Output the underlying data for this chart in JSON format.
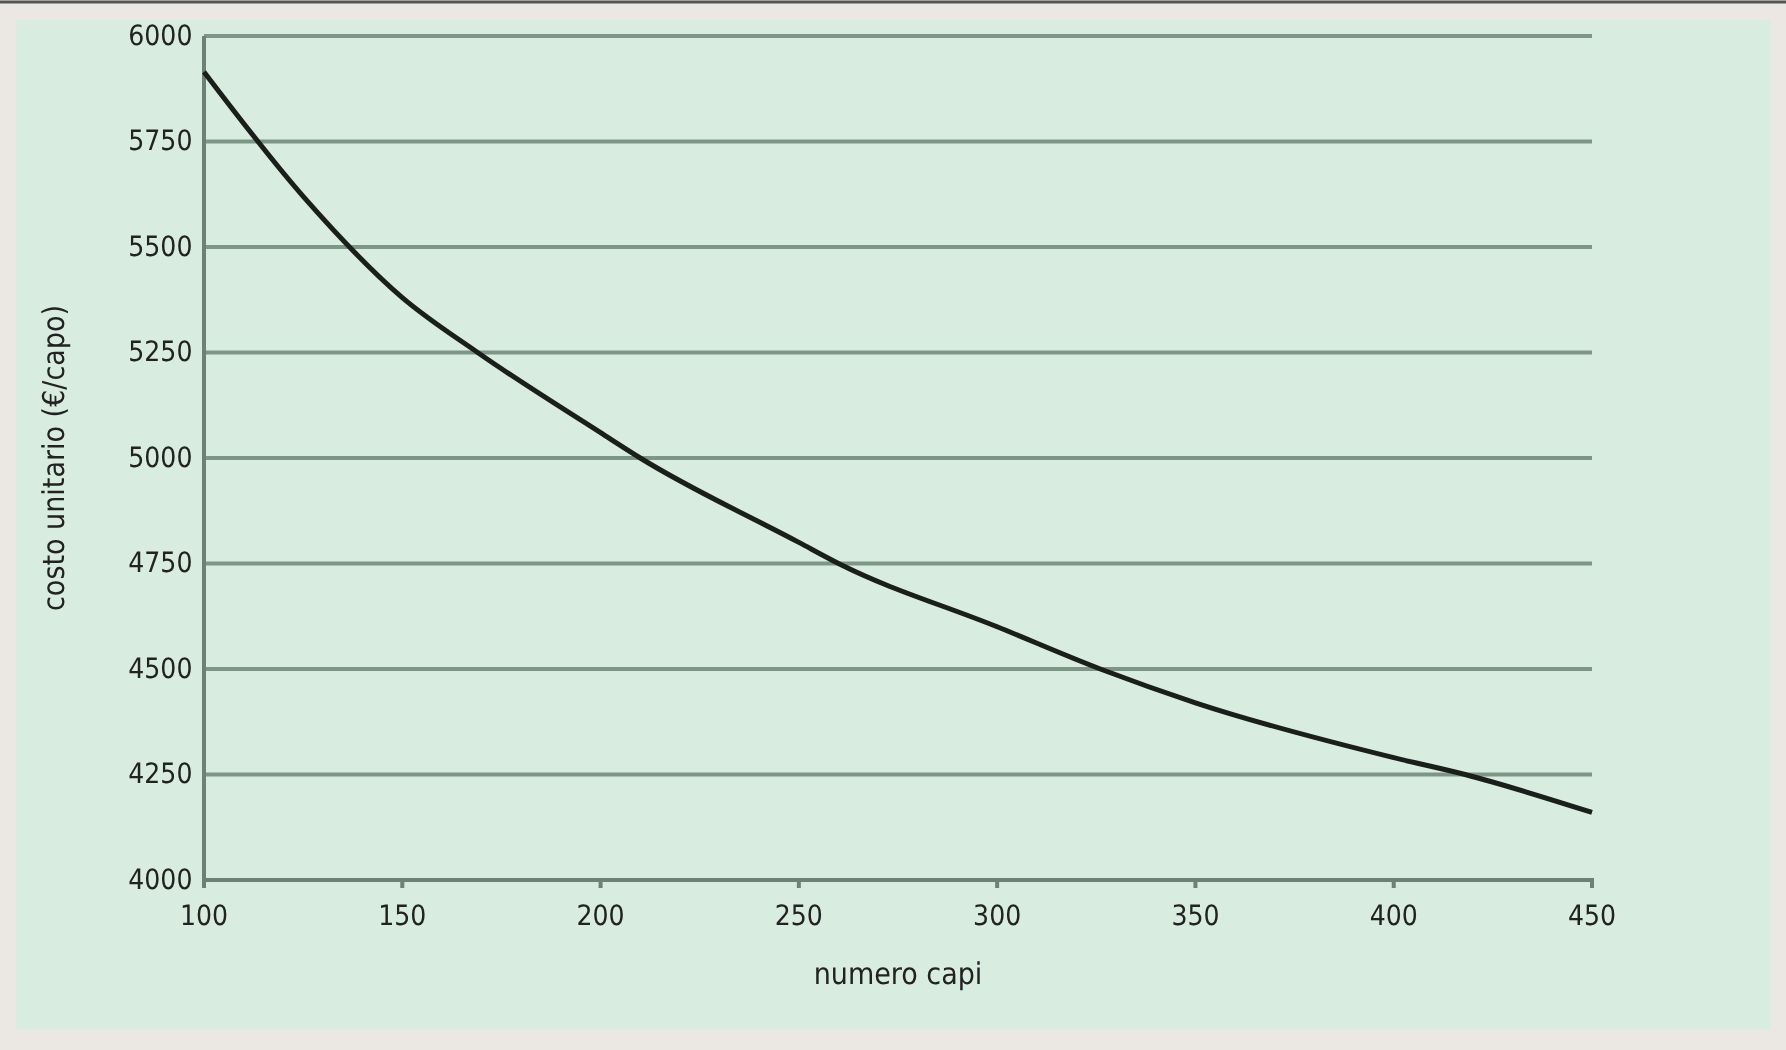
{
  "chart_data": {
    "type": "line",
    "xlabel": "numero capi",
    "ylabel": "costo unitario (€/capo)",
    "x": [
      100,
      125,
      150,
      169,
      200,
      210,
      250,
      260,
      300,
      326,
      350,
      400,
      418,
      450
    ],
    "series": [
      {
        "color": "#1a1f1b",
        "values": [
          5915,
          5620,
          5380,
          5250,
          5060,
          5000,
          4800,
          4750,
          4600,
          4500,
          4420,
          4290,
          4250,
          4160
        ]
      }
    ],
    "xlim": [
      100,
      450
    ],
    "xticks": [
      100,
      150,
      200,
      250,
      300,
      350,
      400,
      450
    ],
    "ylim": [
      4000,
      6000
    ],
    "yticks": [
      4000,
      4250,
      4500,
      4750,
      5000,
      5250,
      5500,
      5750,
      6000
    ],
    "grid": "y",
    "marker": "none",
    "line_style": "solid"
  }
}
